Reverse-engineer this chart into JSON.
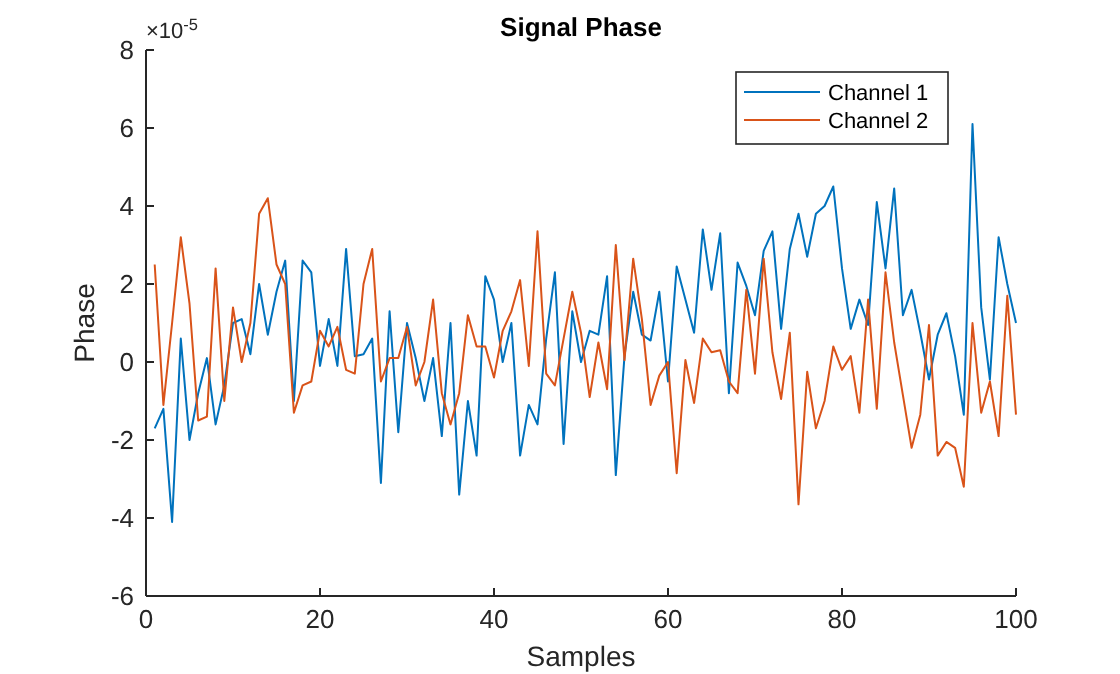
{
  "chart_data": {
    "type": "line",
    "title": "Signal Phase",
    "xlabel": "Samples",
    "ylabel": "Phase",
    "annotations": [
      "×10$^{-5}$"
    ],
    "x": [
      1,
      2,
      3,
      4,
      5,
      6,
      7,
      8,
      9,
      10,
      11,
      12,
      13,
      14,
      15,
      16,
      17,
      18,
      19,
      20,
      21,
      22,
      23,
      24,
      25,
      26,
      27,
      28,
      29,
      30,
      31,
      32,
      33,
      34,
      35,
      36,
      37,
      38,
      39,
      40,
      41,
      42,
      43,
      44,
      45,
      46,
      47,
      48,
      49,
      50,
      51,
      52,
      53,
      54,
      55,
      56,
      57,
      58,
      59,
      60,
      61,
      62,
      63,
      64,
      65,
      66,
      67,
      68,
      69,
      70,
      71,
      72,
      73,
      74,
      75,
      76,
      77,
      78,
      79,
      80,
      81,
      82,
      83,
      84,
      85,
      86,
      87,
      88,
      89,
      90,
      91,
      92,
      93,
      94,
      95,
      96,
      97,
      98,
      99,
      100
    ],
    "series": [
      {
        "name": "Channel 1",
        "color": "#0072bd",
        "values": [
          -1.7,
          -1.2,
          -4.1,
          0.6,
          -2.0,
          -0.8,
          0.1,
          -1.6,
          -0.6,
          1.0,
          1.1,
          0.2,
          2.0,
          0.7,
          1.8,
          2.6,
          -1.0,
          2.6,
          2.3,
          -0.1,
          1.1,
          -0.1,
          2.9,
          0.15,
          0.2,
          0.6,
          -3.1,
          1.3,
          -1.8,
          1.0,
          0.1,
          -1.0,
          0.1,
          -1.9,
          1.0,
          -3.4,
          -1.0,
          -2.4,
          2.2,
          1.6,
          0.0,
          1.0,
          -2.4,
          -1.1,
          -1.6,
          0.6,
          2.3,
          -2.1,
          1.3,
          0.0,
          0.8,
          0.7,
          2.2,
          -2.9,
          0.15,
          1.8,
          0.7,
          0.55,
          1.8,
          -0.5,
          2.45,
          1.6,
          0.75,
          3.4,
          1.85,
          3.3,
          -0.8,
          2.55,
          1.95,
          1.2,
          2.85,
          3.35,
          0.85,
          2.9,
          3.8,
          2.7,
          3.8,
          4.0,
          4.5,
          2.4,
          0.85,
          1.6,
          0.95,
          4.1,
          2.4,
          4.45,
          1.2,
          1.85,
          0.75,
          -0.45,
          0.7,
          1.25,
          0.15,
          -1.35,
          6.1,
          1.4,
          -0.45,
          3.2,
          2.0,
          1.0
        ]
      },
      {
        "name": "Channel 2",
        "color": "#d95319",
        "values": [
          2.5,
          -1.1,
          1.0,
          3.2,
          1.5,
          -1.5,
          -1.4,
          2.4,
          -1.0,
          1.4,
          0.0,
          1.0,
          3.8,
          4.2,
          2.5,
          2.0,
          -1.3,
          -0.6,
          -0.5,
          0.8,
          0.4,
          0.9,
          -0.2,
          -0.3,
          2.0,
          2.9,
          -0.5,
          0.1,
          0.1,
          0.9,
          -0.6,
          0.0,
          1.6,
          -0.8,
          -1.6,
          -0.8,
          1.2,
          0.4,
          0.4,
          -0.4,
          0.8,
          1.3,
          2.1,
          -0.1,
          3.35,
          -0.3,
          -0.6,
          0.6,
          1.8,
          0.75,
          -0.9,
          0.5,
          -0.7,
          3.0,
          0.05,
          2.65,
          1.1,
          -1.1,
          -0.35,
          0.0,
          -2.85,
          0.05,
          -1.05,
          0.6,
          0.25,
          0.3,
          -0.5,
          -0.8,
          1.85,
          -0.3,
          2.65,
          0.25,
          -0.95,
          0.75,
          -3.65,
          -0.25,
          -1.7,
          -1.0,
          0.4,
          -0.2,
          0.15,
          -1.3,
          1.6,
          -1.2,
          2.3,
          0.5,
          -0.85,
          -2.2,
          -1.35,
          0.95,
          -2.4,
          -2.05,
          -2.2,
          -3.2,
          1.0,
          -1.3,
          -0.5,
          -1.9,
          1.7,
          -1.35
        ]
      }
    ],
    "xlim": [
      0,
      100
    ],
    "xticks": [
      0,
      20,
      40,
      60,
      80,
      100
    ],
    "ylim": [
      -6,
      8
    ],
    "yticks": [
      -6,
      -4,
      -2,
      0,
      2,
      4,
      6,
      8
    ],
    "legend": "top right",
    "grid": false,
    "marker": "none",
    "line_style": "solid"
  }
}
